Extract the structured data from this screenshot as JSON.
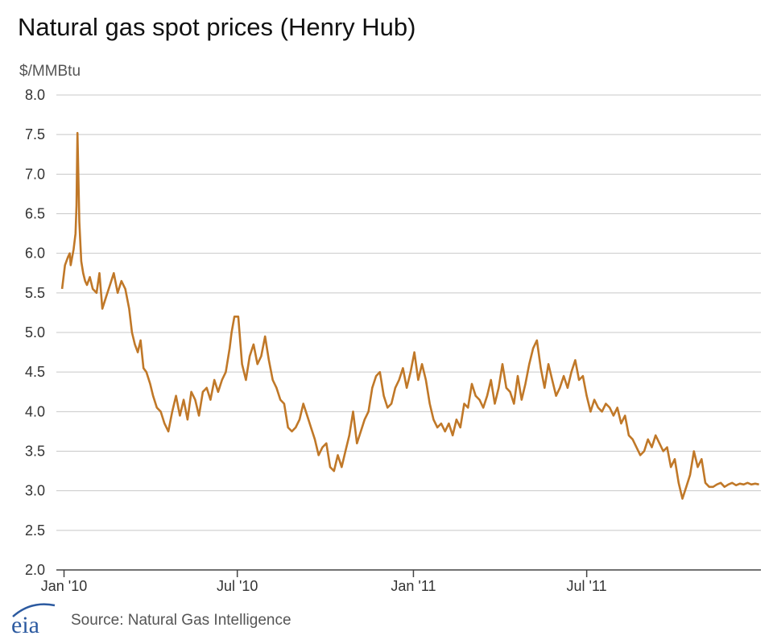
{
  "title": "Natural gas spot prices (Henry Hub)",
  "unit_label": "$/MMBtu",
  "source": "Source: Natural Gas Intelligence",
  "logo_text": "eia",
  "colors": {
    "line": "#c07828",
    "grid": "#c8c8c8",
    "axis": "#444444",
    "logo": "#2c5aa0"
  },
  "chart_data": {
    "type": "line",
    "title": "Natural gas spot prices (Henry Hub)",
    "ylabel": "$/MMBtu",
    "xlabel": "",
    "ylim": [
      2.0,
      8.0
    ],
    "xlim": [
      "2009-12-24",
      "2011-12-30"
    ],
    "grid": true,
    "y_ticks": [
      "2.0",
      "2.5",
      "3.0",
      "3.5",
      "4.0",
      "4.5",
      "5.0",
      "5.5",
      "6.0",
      "6.5",
      "7.0",
      "7.5",
      "8.0"
    ],
    "x_ticks": [
      {
        "label": "Jan '10",
        "date": "2010-01-01"
      },
      {
        "label": "Jul '10",
        "date": "2010-07-01"
      },
      {
        "label": "Jan '11",
        "date": "2011-01-01"
      },
      {
        "label": "Jul '11",
        "date": "2011-07-01"
      }
    ],
    "series": [
      {
        "x": [
          "2009-12-30",
          "2010-01-02",
          "2010-01-05",
          "2010-01-07",
          "2010-01-08",
          "2010-01-11",
          "2010-01-13",
          "2010-01-14",
          "2010-01-15",
          "2010-01-17",
          "2010-01-19",
          "2010-01-21",
          "2010-01-23",
          "2010-01-25",
          "2010-01-28",
          "2010-01-31",
          "2010-02-04",
          "2010-02-07",
          "2010-02-10",
          "2010-02-14",
          "2010-02-18",
          "2010-02-22",
          "2010-02-26",
          "2010-03-02",
          "2010-03-06",
          "2010-03-10",
          "2010-03-13",
          "2010-03-16",
          "2010-03-19",
          "2010-03-22",
          "2010-03-25",
          "2010-03-28",
          "2010-04-01",
          "2010-04-04",
          "2010-04-08",
          "2010-04-12",
          "2010-04-16",
          "2010-04-20",
          "2010-04-24",
          "2010-04-28",
          "2010-05-02",
          "2010-05-06",
          "2010-05-10",
          "2010-05-14",
          "2010-05-18",
          "2010-05-22",
          "2010-05-26",
          "2010-05-30",
          "2010-06-03",
          "2010-06-07",
          "2010-06-11",
          "2010-06-15",
          "2010-06-19",
          "2010-06-23",
          "2010-06-25",
          "2010-06-28",
          "2010-07-02",
          "2010-07-06",
          "2010-07-10",
          "2010-07-14",
          "2010-07-18",
          "2010-07-22",
          "2010-07-26",
          "2010-07-30",
          "2010-08-03",
          "2010-08-07",
          "2010-08-11",
          "2010-08-15",
          "2010-08-19",
          "2010-08-23",
          "2010-08-27",
          "2010-08-31",
          "2010-09-04",
          "2010-09-08",
          "2010-09-12",
          "2010-09-16",
          "2010-09-20",
          "2010-09-24",
          "2010-09-28",
          "2010-10-02",
          "2010-10-06",
          "2010-10-10",
          "2010-10-14",
          "2010-10-18",
          "2010-10-22",
          "2010-10-26",
          "2010-10-30",
          "2010-11-03",
          "2010-11-07",
          "2010-11-11",
          "2010-11-15",
          "2010-11-19",
          "2010-11-23",
          "2010-11-27",
          "2010-12-01",
          "2010-12-05",
          "2010-12-09",
          "2010-12-13",
          "2010-12-17",
          "2010-12-21",
          "2010-12-25",
          "2010-12-29",
          "2011-01-02",
          "2011-01-06",
          "2011-01-10",
          "2011-01-14",
          "2011-01-18",
          "2011-01-22",
          "2011-01-26",
          "2011-01-30",
          "2011-02-03",
          "2011-02-07",
          "2011-02-11",
          "2011-02-15",
          "2011-02-19",
          "2011-02-23",
          "2011-02-27",
          "2011-03-03",
          "2011-03-07",
          "2011-03-11",
          "2011-03-15",
          "2011-03-19",
          "2011-03-23",
          "2011-03-27",
          "2011-03-31",
          "2011-04-04",
          "2011-04-08",
          "2011-04-12",
          "2011-04-16",
          "2011-04-20",
          "2011-04-24",
          "2011-04-28",
          "2011-05-02",
          "2011-05-06",
          "2011-05-10",
          "2011-05-14",
          "2011-05-18",
          "2011-05-22",
          "2011-05-26",
          "2011-05-30",
          "2011-06-03",
          "2011-06-07",
          "2011-06-11",
          "2011-06-15",
          "2011-06-19",
          "2011-06-23",
          "2011-06-27",
          "2011-07-01",
          "2011-07-05",
          "2011-07-09",
          "2011-07-13",
          "2011-07-17",
          "2011-07-21",
          "2011-07-25",
          "2011-07-29",
          "2011-08-02",
          "2011-08-06",
          "2011-08-10",
          "2011-08-14",
          "2011-08-18",
          "2011-08-22",
          "2011-08-26",
          "2011-08-30",
          "2011-09-03",
          "2011-09-07",
          "2011-09-11",
          "2011-09-15",
          "2011-09-19",
          "2011-09-23",
          "2011-09-27",
          "2011-10-01",
          "2011-10-05",
          "2011-10-09",
          "2011-10-13",
          "2011-10-17",
          "2011-10-21",
          "2011-10-25",
          "2011-10-29",
          "2011-11-02",
          "2011-11-06",
          "2011-11-10",
          "2011-11-14",
          "2011-11-18",
          "2011-11-22",
          "2011-11-26",
          "2011-11-30",
          "2011-12-04",
          "2011-12-08",
          "2011-12-12",
          "2011-12-16",
          "2011-12-20",
          "2011-12-24",
          "2011-12-28"
        ],
        "y": [
          5.55,
          5.85,
          5.95,
          6.0,
          5.85,
          6.05,
          6.25,
          6.6,
          7.52,
          6.4,
          5.9,
          5.75,
          5.65,
          5.6,
          5.7,
          5.55,
          5.5,
          5.75,
          5.3,
          5.45,
          5.6,
          5.75,
          5.5,
          5.65,
          5.55,
          5.3,
          5.0,
          4.85,
          4.75,
          4.9,
          4.55,
          4.5,
          4.35,
          4.2,
          4.05,
          4.0,
          3.85,
          3.75,
          4.0,
          4.2,
          3.95,
          4.15,
          3.9,
          4.25,
          4.15,
          3.95,
          4.25,
          4.3,
          4.15,
          4.4,
          4.25,
          4.4,
          4.5,
          4.8,
          5.0,
          5.2,
          5.2,
          4.6,
          4.4,
          4.7,
          4.85,
          4.6,
          4.7,
          4.95,
          4.65,
          4.4,
          4.3,
          4.15,
          4.1,
          3.8,
          3.75,
          3.8,
          3.9,
          4.1,
          3.95,
          3.8,
          3.65,
          3.45,
          3.55,
          3.6,
          3.3,
          3.25,
          3.45,
          3.3,
          3.5,
          3.7,
          4.0,
          3.6,
          3.75,
          3.9,
          4.0,
          4.3,
          4.45,
          4.5,
          4.2,
          4.05,
          4.1,
          4.3,
          4.4,
          4.55,
          4.3,
          4.5,
          4.75,
          4.4,
          4.6,
          4.4,
          4.1,
          3.9,
          3.8,
          3.85,
          3.75,
          3.85,
          3.7,
          3.9,
          3.8,
          4.1,
          4.05,
          4.35,
          4.2,
          4.15,
          4.05,
          4.2,
          4.4,
          4.1,
          4.3,
          4.6,
          4.3,
          4.25,
          4.1,
          4.45,
          4.15,
          4.35,
          4.6,
          4.8,
          4.9,
          4.55,
          4.3,
          4.6,
          4.4,
          4.2,
          4.3,
          4.45,
          4.3,
          4.5,
          4.65,
          4.4,
          4.45,
          4.2,
          4.0,
          4.15,
          4.05,
          4.0,
          4.1,
          4.05,
          3.95,
          4.05,
          3.85,
          3.95,
          3.7,
          3.65,
          3.55,
          3.45,
          3.5,
          3.65,
          3.55,
          3.7,
          3.6,
          3.5,
          3.55,
          3.3,
          3.4,
          3.1,
          2.9,
          3.05,
          3.2,
          3.5,
          3.3,
          3.4,
          3.1,
          3.05,
          3.05,
          3.08,
          3.1,
          3.05,
          3.08,
          3.1,
          3.07,
          3.09,
          3.08,
          3.1,
          3.08,
          3.09,
          3.08
        ]
      }
    ]
  }
}
